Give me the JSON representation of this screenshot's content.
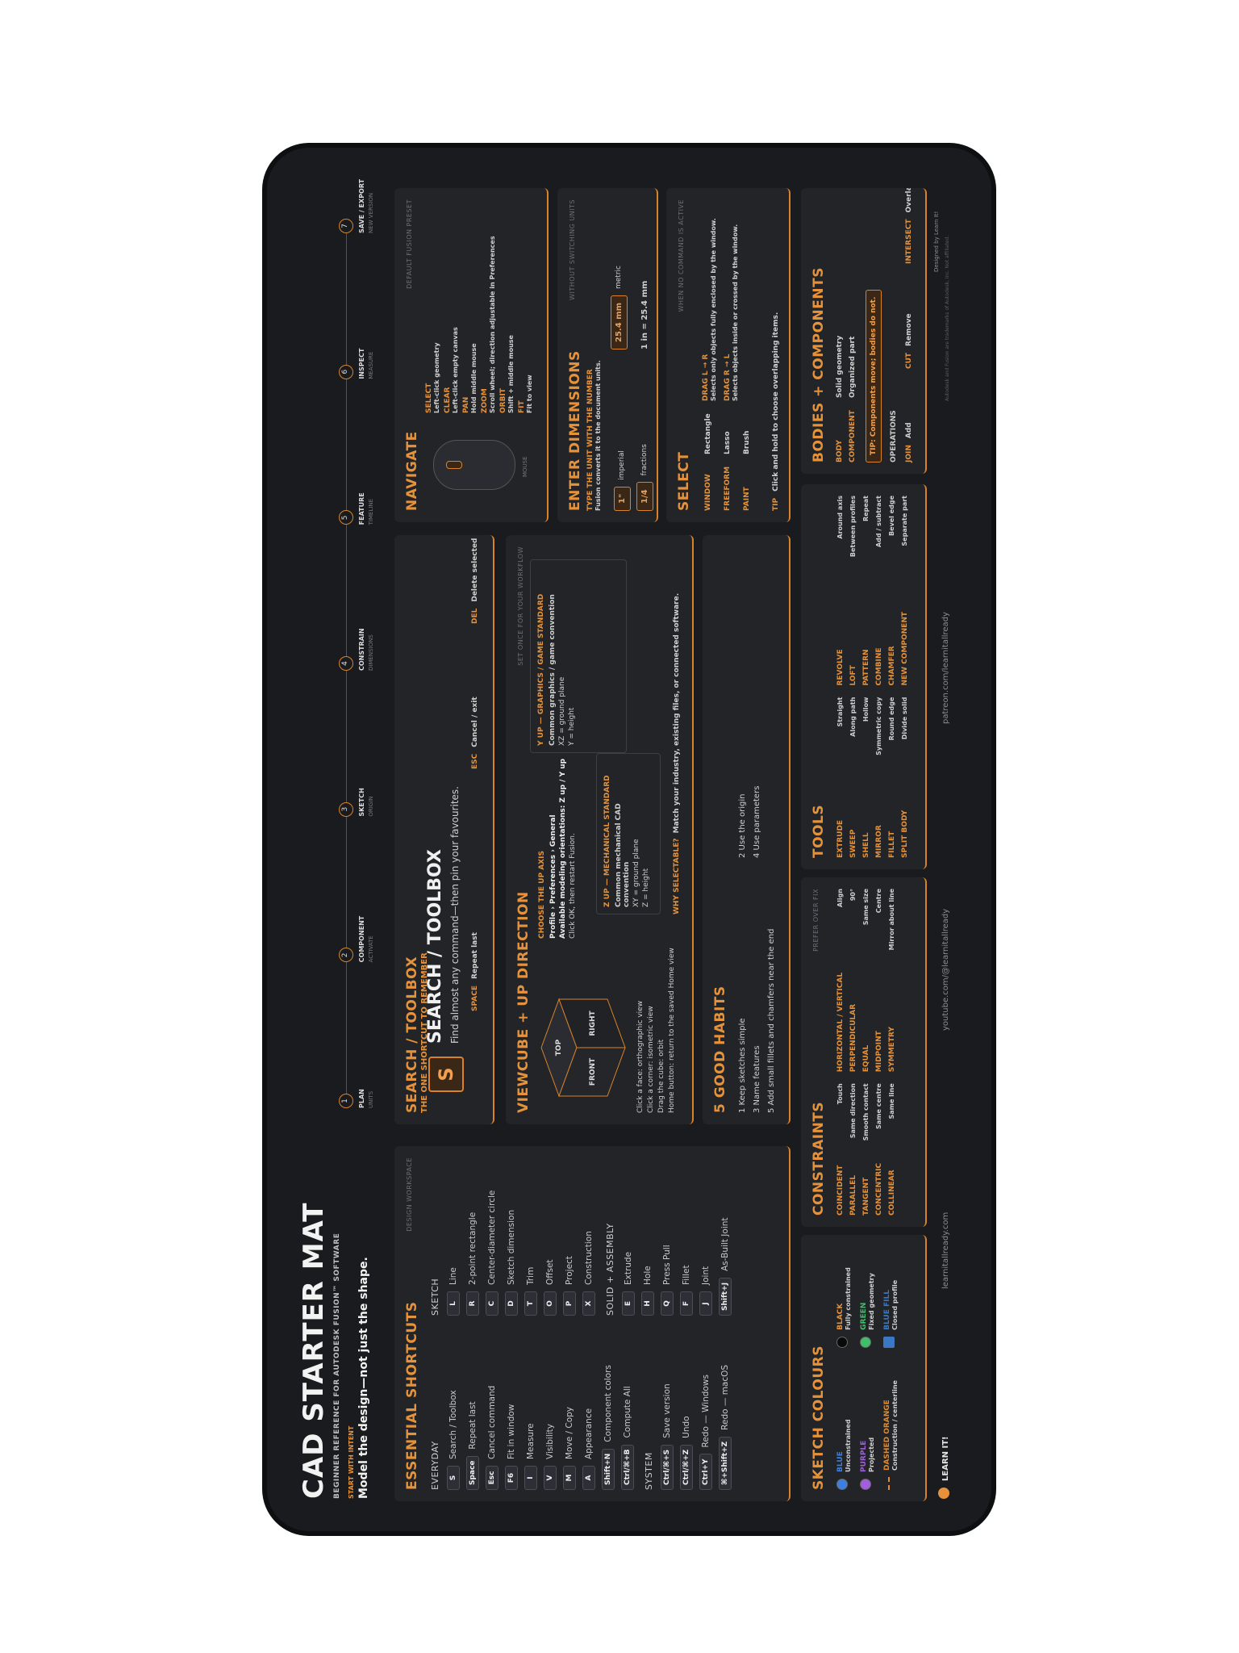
{
  "header": {
    "title": "CAD STARTER MAT",
    "subtitle": "BEGINNER REFERENCE FOR AUTODESK FUSION™ SOFTWARE",
    "intent_label": "START WITH INTENT",
    "intent": "Model the design—not just the shape."
  },
  "timeline": [
    {
      "n": "1",
      "title": "PLAN",
      "sub": "UNITS"
    },
    {
      "n": "2",
      "title": "COMPONENT",
      "sub": "ACTIVATE"
    },
    {
      "n": "3",
      "title": "SKETCH",
      "sub": "ORIGIN"
    },
    {
      "n": "4",
      "title": "CONSTRAIN",
      "sub": "DIMENSIONS"
    },
    {
      "n": "5",
      "title": "FEATURE",
      "sub": "TIMELINE"
    },
    {
      "n": "6",
      "title": "INSPECT",
      "sub": "MEASURE"
    },
    {
      "n": "7",
      "title": "SAVE / EXPORT",
      "sub": "NEW VERSION"
    }
  ],
  "shortcuts": {
    "title": "ESSENTIAL SHORTCUTS",
    "note": "DESIGN WORKSPACE",
    "groups": [
      {
        "name": "EVERYDAY",
        "items": [
          {
            "key": "S",
            "label": "Search / Toolbox"
          },
          {
            "key": "Space",
            "label": "Repeat last"
          },
          {
            "key": "Esc",
            "label": "Cancel command"
          },
          {
            "key": "F6",
            "label": "Fit in window"
          },
          {
            "key": "I",
            "label": "Measure"
          },
          {
            "key": "V",
            "label": "Visibility"
          },
          {
            "key": "M",
            "label": "Move / Copy"
          },
          {
            "key": "A",
            "label": "Appearance"
          },
          {
            "key": "Shift+N",
            "label": "Component colors"
          },
          {
            "key": "Ctrl/⌘+B",
            "label": "Compute All"
          }
        ]
      },
      {
        "name": "SYSTEM",
        "items": [
          {
            "key": "Ctrl/⌘+S",
            "label": "Save version"
          },
          {
            "key": "Ctrl/⌘+Z",
            "label": "Undo"
          },
          {
            "key": "Ctrl+Y",
            "label": "Redo — Windows"
          },
          {
            "key": "⌘+Shift+Z",
            "label": "Redo — macOS"
          }
        ]
      },
      {
        "name": "SKETCH",
        "items": [
          {
            "key": "L",
            "label": "Line"
          },
          {
            "key": "R",
            "label": "2-point rectangle"
          },
          {
            "key": "C",
            "label": "Center-diameter circle"
          },
          {
            "key": "D",
            "label": "Sketch dimension"
          },
          {
            "key": "T",
            "label": "Trim"
          },
          {
            "key": "O",
            "label": "Offset"
          },
          {
            "key": "P",
            "label": "Project"
          },
          {
            "key": "X",
            "label": "Construction"
          }
        ]
      },
      {
        "name": "SOLID + ASSEMBLY",
        "items": [
          {
            "key": "E",
            "label": "Extrude"
          },
          {
            "key": "H",
            "label": "Hole"
          },
          {
            "key": "Q",
            "label": "Press Pull"
          },
          {
            "key": "F",
            "label": "Fillet"
          },
          {
            "key": "J",
            "label": "Joint"
          },
          {
            "key": "Shift+J",
            "label": "As-Built Joint"
          }
        ]
      }
    ]
  },
  "search": {
    "label": "THE ONE SHORTCUT TO REMEMBER",
    "key": "S",
    "title": "SEARCH / TOOLBOX",
    "desc": "Find almost any command—then pin your favourites.",
    "minis": [
      {
        "key": "SPACE",
        "label": "Repeat last"
      },
      {
        "key": "ESC",
        "label": "Cancel / exit"
      },
      {
        "key": "DEL",
        "label": "Delete selected"
      }
    ]
  },
  "viewcube": {
    "title": "VIEWCUBE + UP DIRECTION",
    "note": "SET ONCE FOR YOUR WORKFLOW",
    "faces": {
      "top": "TOP",
      "front": "FRONT",
      "right": "RIGHT"
    },
    "instructions": [
      "Click a face: orthographic view",
      "Click a corner: isometric view",
      "Drag the cube: orbit",
      "Home button: return to the saved Home view"
    ],
    "choose": {
      "title": "CHOOSE THE UP AXIS",
      "lines": [
        "Profile › Preferences › General",
        "Available modeling orientations: Z up / Y up",
        "Click OK, then restart Fusion."
      ]
    },
    "boxes": [
      {
        "title": "Z UP — MECHANICAL STANDARD",
        "lines": [
          "Common mechanical CAD convention",
          "XY = ground plane",
          "Z = height"
        ]
      },
      {
        "title": "Y UP — GRAPHICS / GAME STANDARD",
        "lines": [
          "Common graphics / game convention",
          "XZ = ground plane",
          "Y = height"
        ]
      }
    ],
    "why_label": "WHY SELECTABLE?",
    "why": "Match your industry, existing files, or connected software."
  },
  "habits": {
    "title": "5 GOOD HABITS",
    "items": [
      "1 Keep sketches simple",
      "2 Use the origin",
      "3 Name features",
      "4 Use parameters",
      "5 Add small fillets and chamfers near the end"
    ]
  },
  "navigate": {
    "title": "NAVIGATE",
    "note": "DEFAULT FUSION PRESET",
    "mouse": "MOUSE",
    "items": [
      {
        "name": "SELECT",
        "desc": "Left-click geometry"
      },
      {
        "name": "CLEAR",
        "desc": "Left-click empty canvas"
      },
      {
        "name": "PAN",
        "desc": "Hold middle mouse"
      },
      {
        "name": "ZOOM",
        "desc": "Scroll wheel; direction adjustable in Preferences"
      },
      {
        "name": "ORBIT",
        "desc": "Shift + middle mouse"
      },
      {
        "name": "FIT",
        "desc": "Fit to view"
      }
    ]
  },
  "dimensions": {
    "title": "ENTER DIMENSIONS",
    "note": "WITHOUT SWITCHING UNITS",
    "lead": "TYPE THE UNIT WITH THE NUMBER",
    "sub": "Fusion converts it to the document units.",
    "rows": [
      {
        "value": "1\"",
        "label": "imperial"
      },
      {
        "value": "25.4 mm",
        "label": "metric"
      },
      {
        "value": "1/4",
        "label": "fractions"
      },
      {
        "value": "1 in = 25.4 mm",
        "label": ""
      }
    ]
  },
  "select": {
    "title": "SELECT",
    "note": "WHEN NO COMMAND IS ACTIVE",
    "modes": [
      {
        "name": "WINDOW",
        "desc": "Rectangle"
      },
      {
        "name": "FREEFORM",
        "desc": "Lasso"
      },
      {
        "name": "PAINT",
        "desc": "Brush"
      }
    ],
    "drags": [
      {
        "name": "DRAG L → R",
        "desc": "Selects only objects fully enclosed by the window."
      },
      {
        "name": "DRAG R → L",
        "desc": "Selects objects inside or crossed by the window."
      }
    ],
    "tip_label": "TIP",
    "tip": "Click and hold to choose overlapping items."
  },
  "colours": {
    "title": "SKETCH COLOURS",
    "items": [
      {
        "name": "BLUE",
        "desc": "Unconstrained",
        "swatch": "#3d7fe0",
        "shape": "dot"
      },
      {
        "name": "BLACK",
        "desc": "Fully constrained",
        "swatch": "#0a0a0a",
        "shape": "dot"
      },
      {
        "name": "PURPLE",
        "desc": "Projected",
        "swatch": "#a35ee0",
        "shape": "dot"
      },
      {
        "name": "GREEN",
        "desc": "Fixed geometry",
        "swatch": "#3fbf6a",
        "shape": "dot"
      },
      {
        "name": "DASHED ORANGE",
        "desc": "Construction / centerline",
        "swatch": "#e08a2e",
        "shape": "dash"
      },
      {
        "name": "BLUE FILL",
        "desc": "Closed profile",
        "swatch": "#3b78c4",
        "shape": "square"
      }
    ]
  },
  "constraints": {
    "title": "CONSTRAINTS",
    "note": "PREFER OVER FIX",
    "items": [
      {
        "name": "COINCIDENT",
        "desc": "Touch"
      },
      {
        "name": "HORIZONTAL / VERTICAL",
        "desc": "Align"
      },
      {
        "name": "PARALLEL",
        "desc": "Same direction"
      },
      {
        "name": "PERPENDICULAR",
        "desc": "90°"
      },
      {
        "name": "TANGENT",
        "desc": "Smooth contact"
      },
      {
        "name": "EQUAL",
        "desc": "Same size"
      },
      {
        "name": "CONCENTRIC",
        "desc": "Same centre"
      },
      {
        "name": "MIDPOINT",
        "desc": "Centre"
      },
      {
        "name": "COLLINEAR",
        "desc": "Same line"
      },
      {
        "name": "SYMMETRY",
        "desc": "Mirror about line"
      }
    ]
  },
  "tools": {
    "title": "TOOLS",
    "items": [
      {
        "name": "EXTRUDE",
        "desc": "Straight"
      },
      {
        "name": "REVOLVE",
        "desc": "Around axis"
      },
      {
        "name": "SWEEP",
        "desc": "Along path"
      },
      {
        "name": "LOFT",
        "desc": "Between profiles"
      },
      {
        "name": "SHELL",
        "desc": "Hollow"
      },
      {
        "name": "PATTERN",
        "desc": "Repeat"
      },
      {
        "name": "MIRROR",
        "desc": "Symmetric copy"
      },
      {
        "name": "COMBINE",
        "desc": "Add / subtract"
      },
      {
        "name": "FILLET",
        "desc": "Round edge"
      },
      {
        "name": "CHAMFER",
        "desc": "Bevel edge"
      },
      {
        "name": "SPLIT BODY",
        "desc": "Divide solid"
      },
      {
        "name": "NEW COMPONENT",
        "desc": "Separate part"
      }
    ]
  },
  "bodies": {
    "title": "BODIES + COMPONENTS",
    "items": [
      {
        "name": "BODY",
        "desc": "Solid geometry"
      },
      {
        "name": "COMPONENT",
        "desc": "Organized part"
      }
    ],
    "tip": "TIP: Components move; bodies do not.",
    "ops_label": "OPERATIONS",
    "ops": [
      {
        "name": "JOIN",
        "desc": "Add"
      },
      {
        "name": "CUT",
        "desc": "Remove"
      },
      {
        "name": "INTERSECT",
        "desc": "Overlap"
      }
    ]
  },
  "footer": {
    "brand": "LEARN IT!",
    "links": [
      "learnitallready.com",
      "youtube.com/@learnitallready",
      "patreon.com/learnitallready"
    ],
    "credit": "Designed by Learn It!",
    "fine": "Autodesk and Fusion are trademarks of Autodesk, Inc. Not affiliated."
  }
}
